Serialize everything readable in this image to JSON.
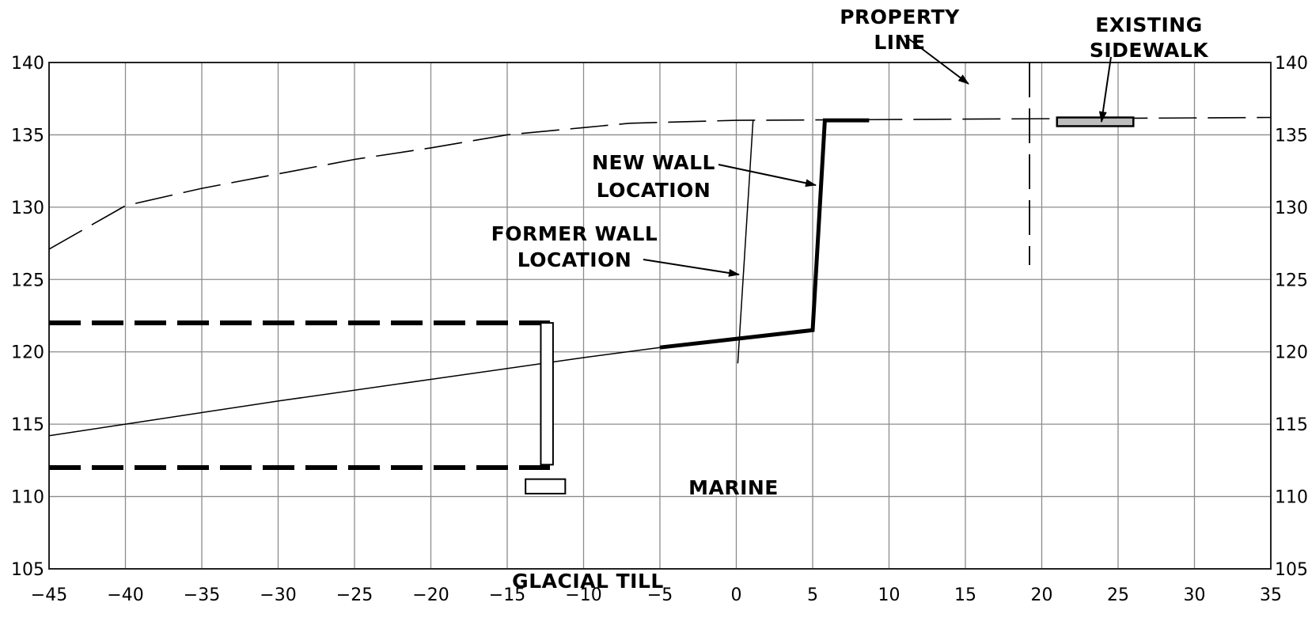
{
  "chart_data": {
    "type": "diagram",
    "xlim": [
      -45,
      35
    ],
    "ylim": [
      105,
      140
    ],
    "x_ticks": [
      "−45",
      "−40",
      "−35",
      "−30",
      "−25",
      "−20",
      "−15",
      "−10",
      "−5",
      "0",
      "5",
      "10",
      "15",
      "20",
      "25",
      "30",
      "35"
    ],
    "y_ticks": [
      "140",
      "135",
      "130",
      "125",
      "120",
      "115",
      "110",
      "105"
    ],
    "x_tick_values": [
      -45,
      -40,
      -35,
      -30,
      -25,
      -20,
      -15,
      -10,
      -5,
      0,
      5,
      10,
      15,
      20,
      25,
      30,
      35
    ],
    "y_tick_values": [
      140,
      135,
      130,
      125,
      120,
      115,
      110,
      105
    ],
    "grid": true,
    "annotations": {
      "property_line": [
        "PROPERTY",
        "LINE"
      ],
      "existing_sidewalk": [
        "EXISTING",
        "SIDEWALK"
      ],
      "new_wall_location": [
        "NEW WALL",
        "LOCATION"
      ],
      "former_wall_location": [
        "FORMER WALL",
        "LOCATION"
      ],
      "marine": "MARINE",
      "glacial_till": "GLACIAL TILL"
    },
    "lines": {
      "ground_surface_dashed": [
        [
          -45,
          127.1
        ],
        [
          -40,
          130.1
        ],
        [
          -35,
          131.3
        ],
        [
          -30,
          132.3
        ],
        [
          -25,
          133.3
        ],
        [
          -20,
          134.1
        ],
        [
          -15,
          135.0
        ],
        [
          -10,
          135.5
        ],
        [
          -7,
          135.8
        ],
        [
          0,
          136.0
        ],
        [
          35,
          136.2
        ]
      ],
      "soil_boundary": [
        [
          -45,
          114.2
        ],
        [
          -40,
          115.0
        ],
        [
          -30,
          116.6
        ],
        [
          -20,
          118.1
        ],
        [
          -10,
          119.6
        ],
        [
          -5,
          120.3
        ]
      ],
      "new_wall": [
        [
          -5,
          120.3
        ],
        [
          5,
          121.5
        ],
        [
          5.8,
          136.0
        ],
        [
          8.7,
          136.0
        ]
      ],
      "former_wall": [
        [
          0.1,
          119.2
        ],
        [
          1.1,
          136.0
        ]
      ],
      "property_line": [
        [
          19.2,
          140.0
        ],
        [
          19.2,
          126.0
        ]
      ],
      "sidewalk": [
        [
          21,
          135.6
        ],
        [
          26,
          136.2
        ]
      ],
      "upper_dashed_level": [
        [
          -45,
          122.0
        ],
        [
          -12.2,
          122.0
        ]
      ],
      "lower_dashed_level": [
        [
          -45,
          112.0
        ],
        [
          -12.2,
          112.0
        ]
      ],
      "soldier_pile": [
        [
          -12.8,
          112.2
        ],
        [
          -12.0,
          122.0
        ]
      ],
      "pile_footing": [
        [
          -13.8,
          110.2
        ],
        [
          -11.2,
          111.2
        ]
      ]
    }
  }
}
